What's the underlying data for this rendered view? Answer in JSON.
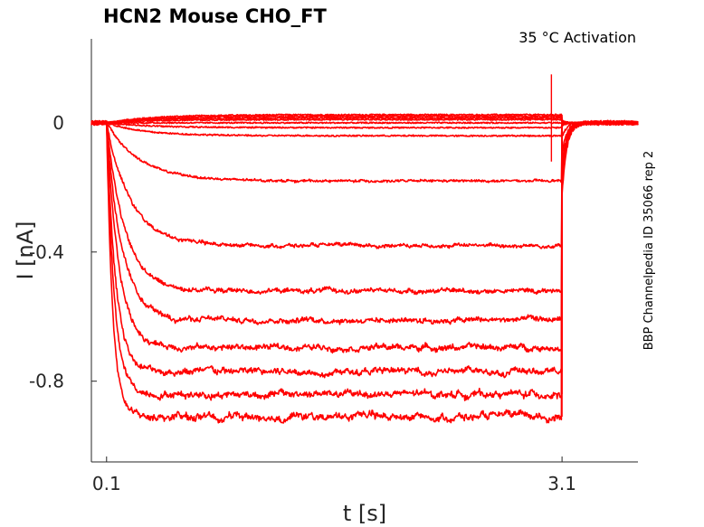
{
  "chart_data": {
    "type": "line",
    "title": "HCN2  Mouse  CHO_FT",
    "annotation": "35 °C  Activation",
    "side_label": "BBP Channelpedia ID 35066 rep 2",
    "xlabel": "t [s]",
    "ylabel": "I [nA]",
    "xlim": [
      0.0,
      3.6
    ],
    "ylim": [
      -1.05,
      0.26
    ],
    "xticks": [
      {
        "value": 0.1,
        "label": "0.1"
      },
      {
        "value": 3.1,
        "label": "3.1"
      }
    ],
    "yticks": [
      {
        "value": 0,
        "label": "0"
      },
      {
        "value": -0.4,
        "label": "-0.4"
      },
      {
        "value": -0.8,
        "label": "-0.8"
      }
    ],
    "grid": false,
    "line_color": "#ff0000",
    "step_on": 0.1,
    "step_off": 3.1,
    "x_end": 3.6,
    "artifact": {
      "x": 3.03,
      "ymax": 0.15,
      "ymin": -0.12
    },
    "series": [
      {
        "baseline": 0.0,
        "steady": 0.025,
        "tau": 0.3
      },
      {
        "baseline": 0.0,
        "steady": 0.02,
        "tau": 0.3
      },
      {
        "baseline": 0.0,
        "steady": 0.015,
        "tau": 0.3
      },
      {
        "baseline": 0.0,
        "steady": 0.01,
        "tau": 0.3
      },
      {
        "baseline": 0.0,
        "steady": 0.0,
        "tau": 0.3
      },
      {
        "baseline": 0.0,
        "steady": -0.015,
        "tau": 0.3
      },
      {
        "baseline": 0.0,
        "steady": -0.04,
        "tau": 0.25
      },
      {
        "baseline": 0.0,
        "steady": -0.18,
        "tau": 0.22
      },
      {
        "baseline": 0.0,
        "steady": -0.38,
        "tau": 0.16
      },
      {
        "baseline": 0.0,
        "steady": -0.52,
        "tau": 0.12
      },
      {
        "baseline": 0.0,
        "steady": -0.61,
        "tau": 0.1
      },
      {
        "baseline": 0.0,
        "steady": -0.695,
        "tau": 0.08
      },
      {
        "baseline": 0.0,
        "steady": -0.77,
        "tau": 0.06
      },
      {
        "baseline": 0.0,
        "steady": -0.84,
        "tau": 0.05
      },
      {
        "baseline": 0.0,
        "steady": -0.91,
        "tau": 0.04
      }
    ]
  }
}
